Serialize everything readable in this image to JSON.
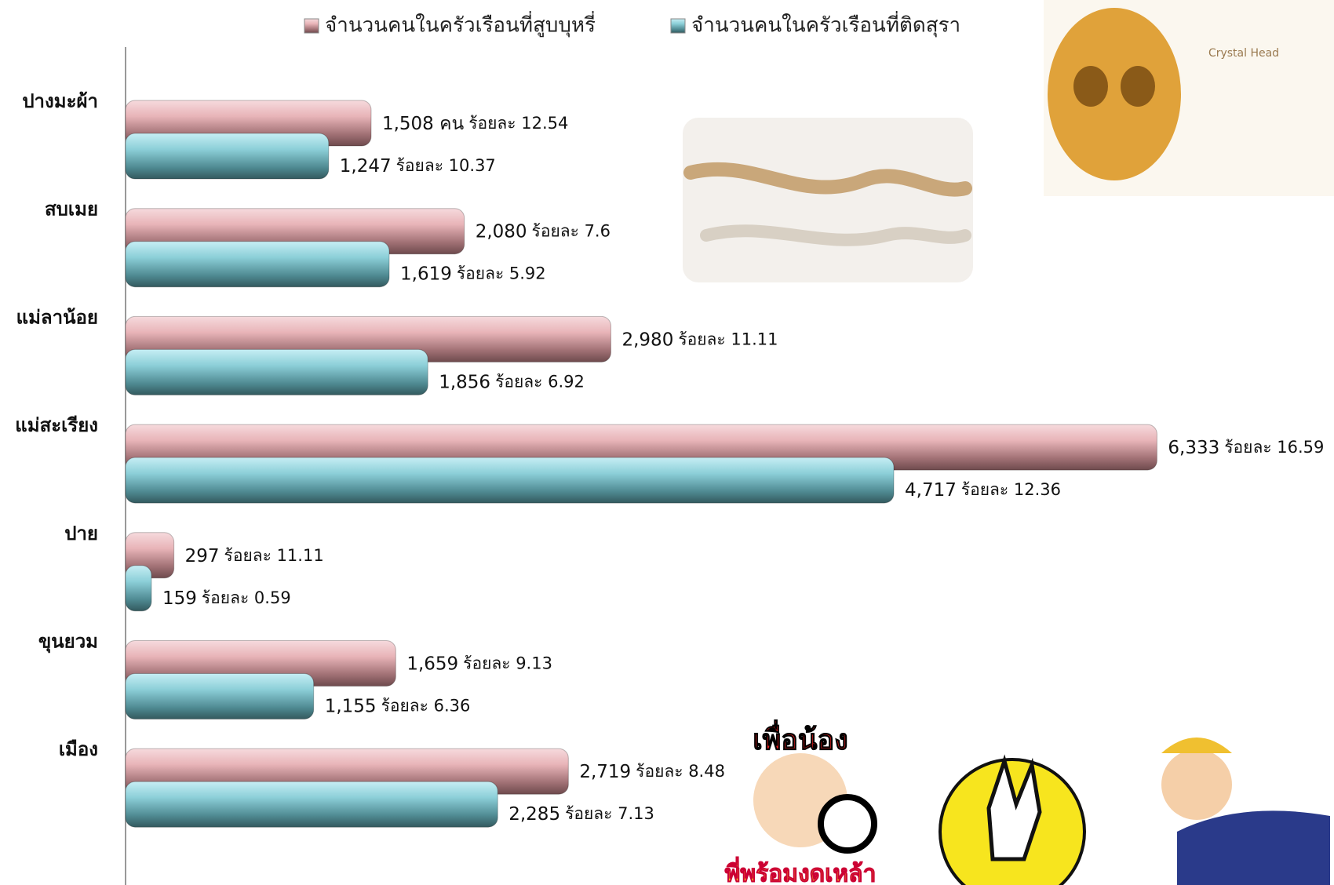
{
  "chart_data": {
    "type": "bar",
    "orientation": "horizontal",
    "categories": [
      "ปางมะผ้า",
      "สบเมย",
      "แม่ลาน้อย",
      "แม่สะเรียง",
      "ปาย",
      "ขุนยวม",
      "เมือง"
    ],
    "series": [
      {
        "name": "จำนวนคนในครัวเรือนที่สูบบุหรี่",
        "color": "#e8b4b8",
        "values": [
          1508,
          2080,
          2980,
          6333,
          297,
          1659,
          2719
        ],
        "value_labels": [
          "1,508 คน",
          "2,080",
          "2,980",
          "6,333",
          "297",
          "1,659",
          "2,719"
        ],
        "percent_labels": [
          "ร้อยละ 12.54",
          "ร้อยละ 7.6",
          "ร้อยละ 11.11",
          "ร้อยละ 16.59",
          "ร้อยละ 11.11",
          "ร้อยละ 9.13",
          "ร้อยละ 8.48"
        ]
      },
      {
        "name": "จำนวนคนในครัวเรือนที่ติดสุรา",
        "color": "#8ccfd8",
        "values": [
          1247,
          1619,
          1856,
          4717,
          159,
          1155,
          2285
        ],
        "value_labels": [
          "1,247",
          "1,619",
          "1,856",
          "4,717",
          "159",
          "1,155",
          "2,285"
        ],
        "percent_labels": [
          "ร้อยละ 10.37",
          "ร้อยละ 5.92",
          "ร้อยละ 6.92",
          "ร้อยละ 12.36",
          "ร้อยละ 0.59",
          "ร้อยละ 6.36",
          "ร้อยละ 7.13"
        ]
      }
    ],
    "xlim": [
      0,
      7420
    ],
    "legend": "top",
    "annotations": [
      "Crystal Head",
      "เพื่อน้อง",
      "พี่พร้อมงดเหล้า"
    ]
  }
}
